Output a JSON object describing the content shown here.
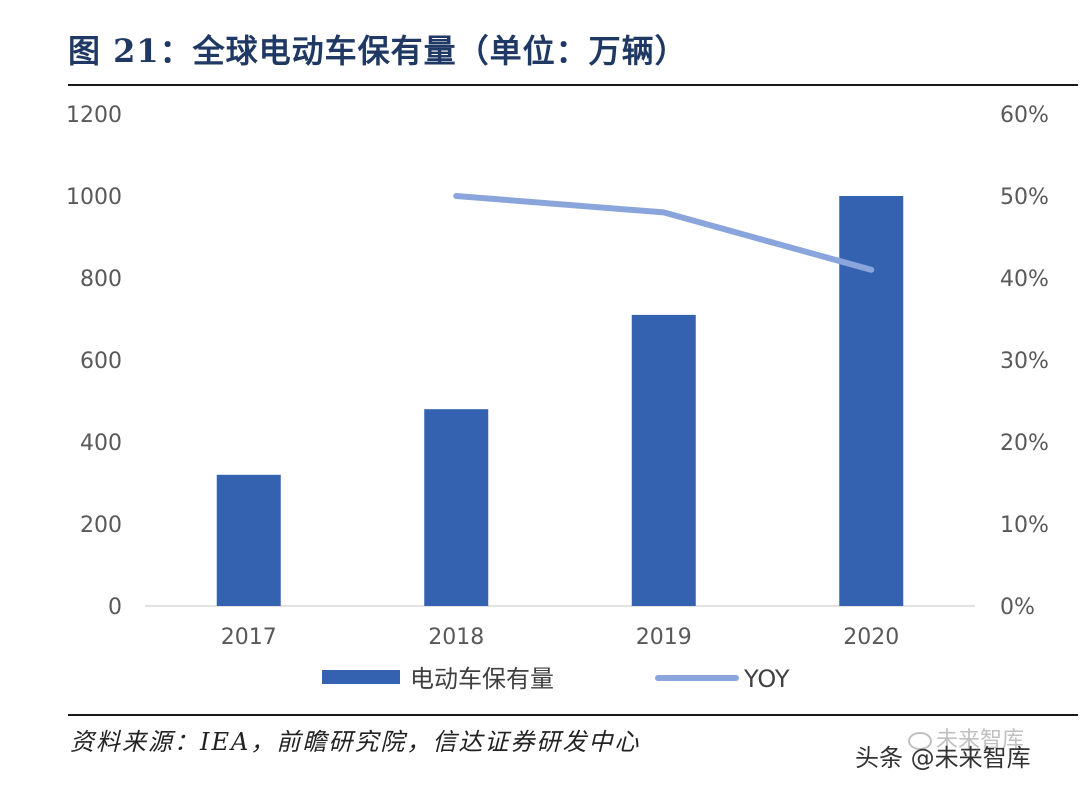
{
  "title": "图 21：全球电动车保有量（单位：万辆）",
  "source": "资料来源：IEA，前瞻研究院，信达证券研发中心",
  "watermark": {
    "text": "头条 @未来智库",
    "ghost_text": "未来智库"
  },
  "colors": {
    "bar": "#3461b0",
    "line": "#8aa5dc",
    "axis": "#d9d9d9",
    "title": "#1f3864"
  },
  "chart_data": {
    "type": "bar",
    "categories": [
      "2017",
      "2018",
      "2019",
      "2020"
    ],
    "series": [
      {
        "name": "电动车保有量",
        "kind": "bar",
        "axis": "left",
        "values": [
          320,
          480,
          710,
          1000
        ]
      },
      {
        "name": "YOY",
        "kind": "line",
        "axis": "right",
        "values": [
          null,
          0.5,
          0.48,
          0.41
        ]
      }
    ],
    "y_left": {
      "min": 0,
      "max": 1200,
      "ticks": [
        0,
        200,
        400,
        600,
        800,
        1000,
        1200
      ]
    },
    "y_right": {
      "min": 0,
      "max": 0.6,
      "ticks": [
        "0%",
        "10%",
        "20%",
        "30%",
        "40%",
        "50%",
        "60%"
      ]
    },
    "legend_position": "bottom"
  }
}
